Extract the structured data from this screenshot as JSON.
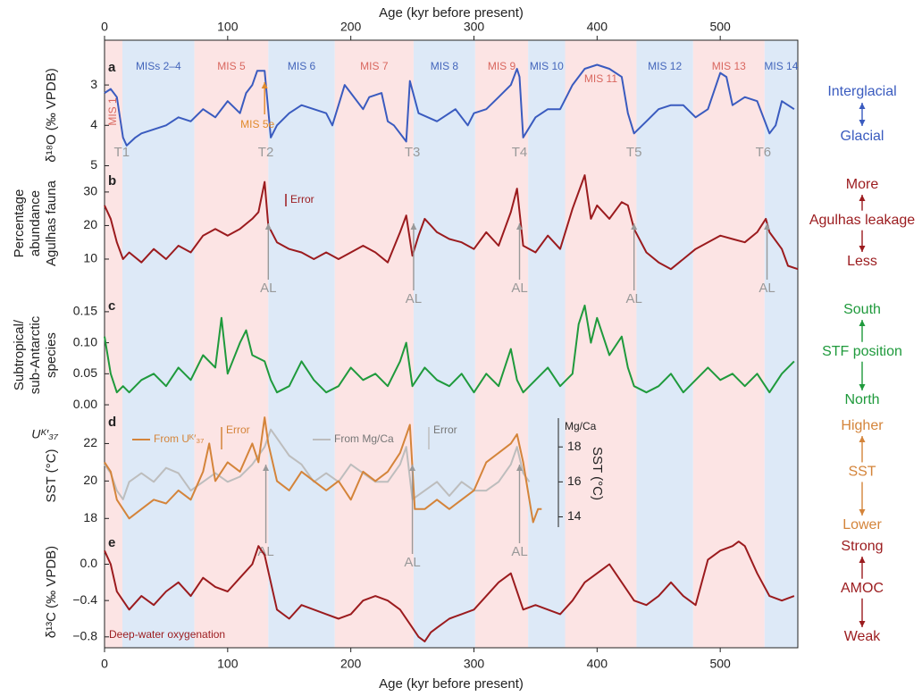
{
  "chart_data": [
    {
      "type": "line",
      "panel": "a",
      "xlabel": "Age (kyr before present)",
      "xlim": [
        0,
        563
      ],
      "xticks": [
        0,
        100,
        200,
        300,
        400,
        500
      ],
      "ylabel": [
        "δ¹⁸O (‰ VPDB)"
      ],
      "ylim": [
        5.1,
        2.4
      ],
      "yticks": [
        3,
        4,
        5
      ],
      "band_colors": [
        "#fce4e4",
        "#dde9f7"
      ],
      "band_label_colors": [
        "#d9675f",
        "#4466bb"
      ],
      "mis_stages": [
        {
          "label": "MIS 1",
          "start": 0,
          "end": 14.5
        },
        {
          "label": "MISs 2–4",
          "start": 14.5,
          "end": 73
        },
        {
          "label": "MIS 5",
          "start": 73,
          "end": 133
        },
        {
          "label": "MIS 6",
          "start": 133,
          "end": 187
        },
        {
          "label": "MIS 7",
          "start": 187,
          "end": 251
        },
        {
          "label": "MIS 8",
          "start": 251,
          "end": 301
        },
        {
          "label": "MIS 9",
          "start": 301,
          "end": 344
        },
        {
          "label": "MIS 10",
          "start": 344,
          "end": 374
        },
        {
          "label": "MIS 11",
          "start": 374,
          "end": 432
        },
        {
          "label": "MIS 12",
          "start": 432,
          "end": 478
        },
        {
          "label": "MIS 13",
          "start": 478,
          "end": 536
        },
        {
          "label": "MIS 14",
          "start": 536,
          "end": 563
        }
      ],
      "markers": [
        {
          "text": "T1",
          "x": 14
        },
        {
          "text": "T2",
          "x": 131
        },
        {
          "text": "T3",
          "x": 250
        },
        {
          "text": "T4",
          "x": 337
        },
        {
          "text": "T5",
          "x": 430
        },
        {
          "text": "T6",
          "x": 535
        }
      ],
      "marker_color": "#999999",
      "note": {
        "text": "MIS 5e",
        "x": 130,
        "color": "#e08a2c"
      },
      "side_labels": [
        "Interglacial",
        "Glacial"
      ],
      "series": [
        {
          "color": "#3a5bbf",
          "x": [
            0,
            5,
            10,
            15,
            18,
            25,
            30,
            40,
            50,
            60,
            70,
            80,
            90,
            100,
            110,
            115,
            120,
            124,
            130,
            135,
            140,
            150,
            160,
            170,
            180,
            185,
            195,
            200,
            210,
            215,
            225,
            230,
            235,
            245,
            248,
            255,
            270,
            285,
            295,
            300,
            310,
            320,
            330,
            335,
            337,
            340,
            350,
            360,
            370,
            380,
            390,
            400,
            410,
            420,
            425,
            430,
            440,
            450,
            460,
            470,
            480,
            490,
            500,
            505,
            510,
            520,
            530,
            540,
            545,
            550,
            555,
            560
          ],
          "values": [
            3.2,
            3.1,
            3.3,
            4.3,
            4.5,
            4.3,
            4.2,
            4.1,
            4.0,
            3.8,
            3.9,
            3.6,
            3.8,
            3.4,
            3.7,
            3.2,
            3.0,
            2.65,
            2.65,
            4.3,
            4.0,
            3.7,
            3.5,
            3.6,
            3.7,
            4.0,
            3.0,
            3.2,
            3.6,
            3.3,
            3.2,
            3.9,
            4.0,
            4.4,
            2.9,
            3.7,
            3.9,
            3.6,
            4.0,
            3.7,
            3.6,
            3.3,
            3.0,
            2.6,
            2.8,
            4.3,
            3.8,
            3.6,
            3.6,
            3.0,
            2.6,
            2.5,
            2.6,
            2.8,
            3.7,
            4.2,
            3.9,
            3.6,
            3.5,
            3.5,
            3.8,
            3.6,
            2.7,
            2.8,
            3.5,
            3.3,
            3.4,
            4.2,
            4.0,
            3.4,
            3.5,
            3.6
          ]
        }
      ]
    },
    {
      "type": "line",
      "panel": "b",
      "xlim": [
        0,
        563
      ],
      "ylabel": [
        "Percentage",
        "abundance",
        "Agulhas fauna"
      ],
      "ylim": [
        6,
        35.3
      ],
      "yticks": [
        10,
        20,
        30
      ],
      "error_label": "Error",
      "markers": [
        {
          "text": "AL",
          "x": 133
        },
        {
          "text": "AL",
          "x": 251
        },
        {
          "text": "AL",
          "x": 337
        },
        {
          "text": "AL",
          "x": 430
        },
        {
          "text": "AL",
          "x": 538
        }
      ],
      "marker_color": "#999999",
      "side_labels": [
        "More",
        "Agulhas leakage",
        "Less"
      ],
      "series": [
        {
          "color": "#9b1b1e",
          "x": [
            0,
            5,
            10,
            15,
            20,
            30,
            40,
            50,
            60,
            70,
            80,
            90,
            100,
            110,
            120,
            125,
            130,
            133,
            140,
            150,
            160,
            170,
            180,
            190,
            200,
            210,
            220,
            230,
            240,
            245,
            250,
            255,
            260,
            270,
            280,
            290,
            300,
            310,
            320,
            330,
            335,
            340,
            350,
            360,
            370,
            380,
            390,
            395,
            400,
            410,
            420,
            425,
            430,
            440,
            450,
            460,
            470,
            480,
            490,
            500,
            510,
            520,
            530,
            537,
            540,
            550,
            555,
            563
          ],
          "values": [
            26,
            22,
            15,
            10,
            12,
            9,
            13,
            10,
            14,
            12,
            17,
            19,
            17,
            19,
            22,
            24,
            33,
            20,
            15,
            13,
            12,
            10,
            12,
            10,
            12,
            14,
            12,
            9,
            18,
            23,
            11,
            17,
            22,
            18,
            16,
            15,
            13,
            18,
            14,
            24,
            31,
            14,
            12,
            17,
            13,
            25,
            35,
            22,
            26,
            22,
            27,
            26,
            19,
            12,
            9,
            7,
            10,
            13,
            15,
            17,
            16,
            15,
            18,
            22,
            18,
            13,
            8,
            7
          ]
        }
      ]
    },
    {
      "type": "line",
      "panel": "c",
      "xlim": [
        0,
        563
      ],
      "ylabel": [
        "Subtropical/",
        "sub-Antarctic",
        "species"
      ],
      "ylim": [
        -0.01,
        0.17
      ],
      "yticks": [
        {
          "value": 0,
          "label": "0.00"
        },
        {
          "value": 0.05,
          "label": "0.05"
        },
        {
          "value": 0.1,
          "label": "0.10"
        },
        {
          "value": 0.15,
          "label": "0.15"
        }
      ],
      "side_labels": [
        "South",
        "STF position",
        "North"
      ],
      "series": [
        {
          "color": "#1f9a3c",
          "x": [
            0,
            5,
            10,
            15,
            20,
            30,
            40,
            50,
            60,
            70,
            80,
            90,
            95,
            100,
            110,
            115,
            120,
            130,
            135,
            140,
            150,
            160,
            170,
            180,
            190,
            200,
            210,
            220,
            230,
            240,
            245,
            250,
            260,
            270,
            280,
            290,
            300,
            310,
            320,
            330,
            335,
            340,
            350,
            360,
            370,
            380,
            385,
            390,
            395,
            400,
            410,
            420,
            425,
            430,
            440,
            450,
            460,
            470,
            480,
            490,
            500,
            510,
            520,
            530,
            540,
            550,
            560
          ],
          "values": [
            0.11,
            0.05,
            0.02,
            0.03,
            0.02,
            0.04,
            0.05,
            0.03,
            0.06,
            0.04,
            0.08,
            0.06,
            0.14,
            0.05,
            0.1,
            0.12,
            0.08,
            0.07,
            0.04,
            0.02,
            0.03,
            0.07,
            0.04,
            0.02,
            0.03,
            0.06,
            0.04,
            0.05,
            0.03,
            0.07,
            0.1,
            0.03,
            0.06,
            0.04,
            0.03,
            0.05,
            0.02,
            0.05,
            0.03,
            0.09,
            0.04,
            0.02,
            0.04,
            0.06,
            0.03,
            0.05,
            0.13,
            0.16,
            0.1,
            0.14,
            0.08,
            0.11,
            0.06,
            0.03,
            0.02,
            0.03,
            0.05,
            0.02,
            0.04,
            0.06,
            0.04,
            0.05,
            0.03,
            0.05,
            0.02,
            0.05,
            0.07
          ]
        }
      ]
    },
    {
      "type": "line",
      "panel": "d",
      "xlim": [
        0,
        563
      ],
      "ylabel": [
        "SST (°C)"
      ],
      "ylabel_top": "Uᴷ′₃₇",
      "ylim": [
        17.06,
        23.5
      ],
      "yticks": [
        18,
        20,
        22
      ],
      "y2label": "SST (°C)",
      "y2label_top": "Mg/Ca",
      "y2lim": [
        12.9,
        19.8
      ],
      "y2ticks": [
        14,
        16,
        18
      ],
      "error_label": "Error",
      "markers": [
        {
          "text": "AL",
          "x": 131
        },
        {
          "text": "AL",
          "x": 250
        },
        {
          "text": "AL",
          "x": 337
        }
      ],
      "marker_color": "#999999",
      "side_labels": [
        "Higher",
        "SST",
        "Lower"
      ],
      "series": [
        {
          "name": "From Mg/Ca",
          "color": "#bdbdbd",
          "axis": "y2",
          "x": [
            0,
            5,
            10,
            15,
            20,
            30,
            40,
            50,
            60,
            70,
            80,
            90,
            100,
            110,
            120,
            130,
            135,
            140,
            150,
            160,
            170,
            180,
            190,
            200,
            210,
            220,
            230,
            240,
            245,
            250,
            260,
            270,
            280,
            290,
            300,
            310,
            320,
            330,
            335,
            340,
            345
          ],
          "values": [
            17,
            16.5,
            15.5,
            15,
            16,
            16.5,
            16,
            16.8,
            16.5,
            15.5,
            16,
            16.5,
            16,
            16.3,
            17,
            18,
            19,
            18.5,
            17.5,
            17,
            16,
            16.5,
            16,
            17,
            16.5,
            16,
            16,
            17,
            18,
            15,
            15.5,
            16,
            15.2,
            16,
            15.5,
            15.5,
            16,
            17,
            18,
            16.5,
            16
          ]
        },
        {
          "name": "From Uᴷ′₃₇",
          "color": "#d4843a",
          "x": [
            0,
            5,
            10,
            15,
            20,
            30,
            40,
            50,
            60,
            70,
            80,
            85,
            90,
            100,
            110,
            120,
            125,
            130,
            133,
            140,
            150,
            160,
            170,
            180,
            190,
            200,
            210,
            220,
            230,
            240,
            248,
            252,
            260,
            270,
            280,
            290,
            300,
            310,
            320,
            330,
            335,
            340,
            345,
            348,
            352,
            355
          ],
          "values": [
            21,
            20.5,
            19,
            18.5,
            18,
            18.5,
            19,
            18.8,
            19.5,
            19,
            20.5,
            22,
            20,
            21,
            20.5,
            22,
            21,
            23.4,
            22,
            20,
            19.5,
            20.5,
            20,
            19.5,
            20,
            19,
            20.5,
            20,
            20.5,
            21.5,
            23,
            18.5,
            18.5,
            19,
            18.5,
            19,
            19.5,
            21,
            21.5,
            22,
            22.5,
            21,
            19,
            17.8,
            18.5,
            18.5
          ]
        }
      ]
    },
    {
      "type": "line",
      "panel": "e",
      "xlabel": "Age (kyr before present)",
      "xlim": [
        0,
        563
      ],
      "xticks": [
        0,
        100,
        200,
        300,
        400,
        500
      ],
      "ylabel": [
        "δ¹³C (‰ VPDB)"
      ],
      "ylim": [
        -0.92,
        0.31
      ],
      "yticks": [
        {
          "value": 0,
          "label": "0.0"
        },
        {
          "value": -0.4,
          "label": "−0.4"
        },
        {
          "value": -0.8,
          "label": "−0.8"
        }
      ],
      "caption": "Deep-water oxygenation",
      "side_labels": [
        "Strong",
        "AMOC",
        "Weak"
      ],
      "series": [
        {
          "color": "#9b1b1e",
          "x": [
            0,
            5,
            10,
            15,
            20,
            30,
            40,
            50,
            60,
            70,
            80,
            90,
            100,
            110,
            120,
            125,
            130,
            135,
            140,
            150,
            160,
            170,
            180,
            190,
            200,
            210,
            220,
            230,
            240,
            250,
            255,
            260,
            265,
            270,
            280,
            290,
            300,
            310,
            320,
            330,
            340,
            350,
            360,
            370,
            380,
            390,
            400,
            410,
            420,
            430,
            440,
            450,
            460,
            470,
            480,
            490,
            500,
            510,
            515,
            520,
            530,
            540,
            550,
            560
          ],
          "values": [
            0.15,
            0.0,
            -0.3,
            -0.4,
            -0.5,
            -0.35,
            -0.45,
            -0.3,
            -0.2,
            -0.35,
            -0.15,
            -0.25,
            -0.3,
            -0.15,
            0.0,
            0.2,
            0.1,
            -0.2,
            -0.5,
            -0.6,
            -0.45,
            -0.5,
            -0.55,
            -0.6,
            -0.55,
            -0.4,
            -0.35,
            -0.4,
            -0.5,
            -0.7,
            -0.8,
            -0.85,
            -0.75,
            -0.7,
            -0.6,
            -0.55,
            -0.5,
            -0.35,
            -0.2,
            -0.1,
            -0.5,
            -0.45,
            -0.5,
            -0.55,
            -0.4,
            -0.2,
            -0.1,
            0.0,
            -0.2,
            -0.4,
            -0.45,
            -0.35,
            -0.2,
            -0.35,
            -0.45,
            0.05,
            0.15,
            0.2,
            0.25,
            0.2,
            -0.1,
            -0.35,
            -0.4,
            -0.35
          ]
        }
      ]
    }
  ]
}
